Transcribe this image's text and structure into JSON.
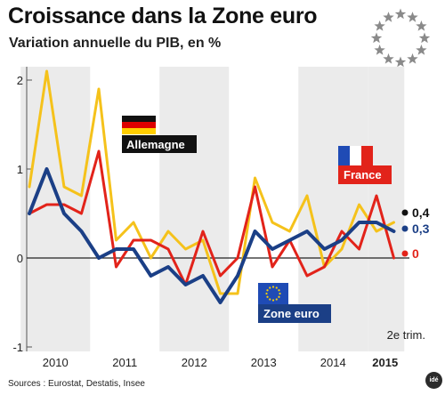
{
  "header": {
    "title": "Croissance dans la Zone euro",
    "subtitle": "Variation annuelle du PIB, en %"
  },
  "footer": {
    "source": "Sources : Eurostat, Destatis, Insee",
    "logo": "idé"
  },
  "colors": {
    "germany": "#f5c21b",
    "france": "#e2231a",
    "eurozone": "#1b3f86",
    "band": "#ebebeb",
    "eu_star": "#8a8a8a"
  },
  "icons": [
    "eu-stars-icon",
    "german-flag-icon",
    "french-flag-icon",
    "eu-flag-icon"
  ],
  "chart_data": {
    "type": "line",
    "x_unit": "quarter",
    "categories": [
      "2010",
      "2011",
      "2012",
      "2013",
      "2014",
      "2015"
    ],
    "x": [
      "2010-Q1",
      "2010-Q2",
      "2010-Q3",
      "2010-Q4",
      "2011-Q1",
      "2011-Q2",
      "2011-Q3",
      "2011-Q4",
      "2012-Q1",
      "2012-Q2",
      "2012-Q3",
      "2012-Q4",
      "2013-Q1",
      "2013-Q2",
      "2013-Q3",
      "2013-Q4",
      "2014-Q1",
      "2014-Q2",
      "2014-Q3",
      "2014-Q4",
      "2015-Q1",
      "2015-Q2"
    ],
    "ylim": [
      -1,
      2
    ],
    "yticks": [
      "-1",
      "0",
      "1",
      "2"
    ],
    "series": [
      {
        "name": "Allemagne",
        "color_key": "germany",
        "values": [
          0.8,
          2.1,
          0.8,
          0.7,
          1.9,
          0.2,
          0.4,
          0.0,
          0.3,
          0.1,
          0.2,
          -0.4,
          -0.4,
          0.9,
          0.4,
          0.3,
          0.7,
          -0.1,
          0.1,
          0.6,
          0.3,
          0.4
        ]
      },
      {
        "name": "Zone euro",
        "color_key": "eurozone",
        "values": [
          0.5,
          1.0,
          0.5,
          0.3,
          0.0,
          0.1,
          0.1,
          -0.2,
          -0.1,
          -0.3,
          -0.2,
          -0.5,
          -0.2,
          0.3,
          0.1,
          0.2,
          0.3,
          0.1,
          0.2,
          0.4,
          0.4,
          0.3
        ]
      },
      {
        "name": "France",
        "color_key": "france",
        "values": [
          0.5,
          0.6,
          0.6,
          0.5,
          1.2,
          -0.1,
          0.2,
          0.2,
          0.1,
          -0.3,
          0.3,
          -0.2,
          0.0,
          0.8,
          -0.1,
          0.2,
          -0.2,
          -0.1,
          0.3,
          0.1,
          0.7,
          0.0
        ]
      }
    ],
    "end_labels": [
      {
        "text": "0,4",
        "color_key": "germany_label"
      },
      {
        "text": "0,3",
        "color_key": "eurozone"
      },
      {
        "text": "0",
        "color_key": "france"
      }
    ],
    "series_tags": {
      "germany": "Allemagne",
      "france": "France",
      "eurozone": "Zone euro"
    },
    "note": "2e trim."
  }
}
